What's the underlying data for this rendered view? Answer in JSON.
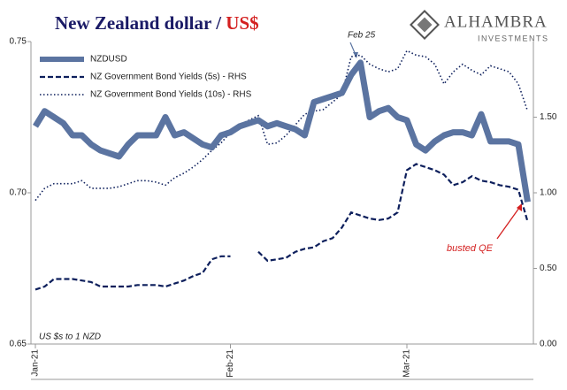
{
  "chart_data": {
    "type": "line",
    "title": [
      "New Zealand dollar /",
      "US$"
    ],
    "logo": [
      "ALHAMBRA",
      "INVESTMENTS"
    ],
    "annotations": [
      "Feb 25",
      "busted QE",
      "US $s to 1 NZD"
    ],
    "categories": [
      "Jan-21",
      null,
      null,
      null,
      null,
      null,
      null,
      null,
      null,
      null,
      null,
      null,
      null,
      null,
      null,
      null,
      null,
      null,
      null,
      null,
      null,
      "Feb-21",
      null,
      null,
      null,
      null,
      null,
      null,
      null,
      null,
      null,
      null,
      null,
      null,
      null,
      null,
      null,
      null,
      null,
      null,
      "Mar-21",
      null,
      null,
      null,
      null,
      null,
      null,
      null,
      null,
      null,
      null,
      null,
      null,
      null
    ],
    "ylim": [
      0.65,
      0.75
    ],
    "yticks": [
      0.65,
      {
        "value": 0.7,
        "label": "0.70"
      },
      0.75
    ],
    "y2lim": [
      0,
      2
    ],
    "y2ticks": [
      {
        "value": 0,
        "label": "0.00"
      },
      {
        "value": 0.5,
        "label": "0.50"
      },
      {
        "value": 1,
        "label": "1.00"
      },
      {
        "value": 1.5,
        "label": "1.50"
      }
    ],
    "legend": "upper left",
    "series": [
      {
        "name": "NZDUSD",
        "color": "#5b74a1",
        "style": "solid",
        "values": [
          0.722,
          0.727,
          0.725,
          0.723,
          0.719,
          0.719,
          0.716,
          0.714,
          0.713,
          0.712,
          0.716,
          0.719,
          0.719,
          0.719,
          0.725,
          0.719,
          0.72,
          0.718,
          0.716,
          0.715,
          0.719,
          0.72,
          0.722,
          0.723,
          0.724,
          0.722,
          0.723,
          0.722,
          0.721,
          0.719,
          0.73,
          0.731,
          0.732,
          0.733,
          0.739,
          0.743,
          0.725,
          0.727,
          0.728,
          0.725,
          0.724,
          0.716,
          0.714,
          0.717,
          0.719,
          0.72,
          0.72,
          0.719,
          0.726,
          0.717,
          0.717,
          0.717,
          0.716,
          0.697
        ]
      },
      {
        "name": "NZ Government Bond Yields (5s) - RHS",
        "color": "#0d1f5c",
        "style": "dashed",
        "axis": "y2",
        "values": [
          0.36,
          0.38,
          0.43,
          0.43,
          0.43,
          0.42,
          0.41,
          0.38,
          0.38,
          0.38,
          0.38,
          0.39,
          0.39,
          0.39,
          0.38,
          0.4,
          0.42,
          0.45,
          0.47,
          0.56,
          0.58,
          0.58,
          null,
          null,
          0.61,
          0.55,
          0.56,
          0.57,
          0.61,
          0.63,
          0.64,
          0.68,
          0.7,
          0.77,
          0.87,
          0.85,
          0.83,
          0.82,
          0.83,
          0.87,
          1.15,
          1.19,
          1.17,
          1.15,
          1.12,
          1.05,
          1.07,
          1.11,
          1.08,
          1.07,
          1.05,
          1.04,
          1.02,
          0.81
        ]
      },
      {
        "name": "NZ Government Bond Yields (10s) - RHS",
        "color": "#0d1f5c",
        "style": "dotted",
        "axis": "y2",
        "values": [
          0.95,
          1.03,
          1.06,
          1.06,
          1.06,
          1.08,
          1.03,
          1.03,
          1.03,
          1.04,
          1.06,
          1.08,
          1.08,
          1.07,
          1.05,
          1.1,
          1.13,
          1.17,
          1.22,
          1.28,
          1.33,
          1.4,
          1.45,
          1.48,
          1.51,
          1.32,
          1.33,
          1.38,
          1.45,
          1.52,
          1.54,
          1.55,
          1.6,
          1.65,
          1.9,
          1.91,
          1.85,
          1.82,
          1.8,
          1.82,
          1.94,
          1.91,
          1.9,
          1.85,
          1.72,
          1.8,
          1.85,
          1.81,
          1.78,
          1.84,
          1.82,
          1.8,
          1.72,
          1.54
        ]
      }
    ]
  }
}
